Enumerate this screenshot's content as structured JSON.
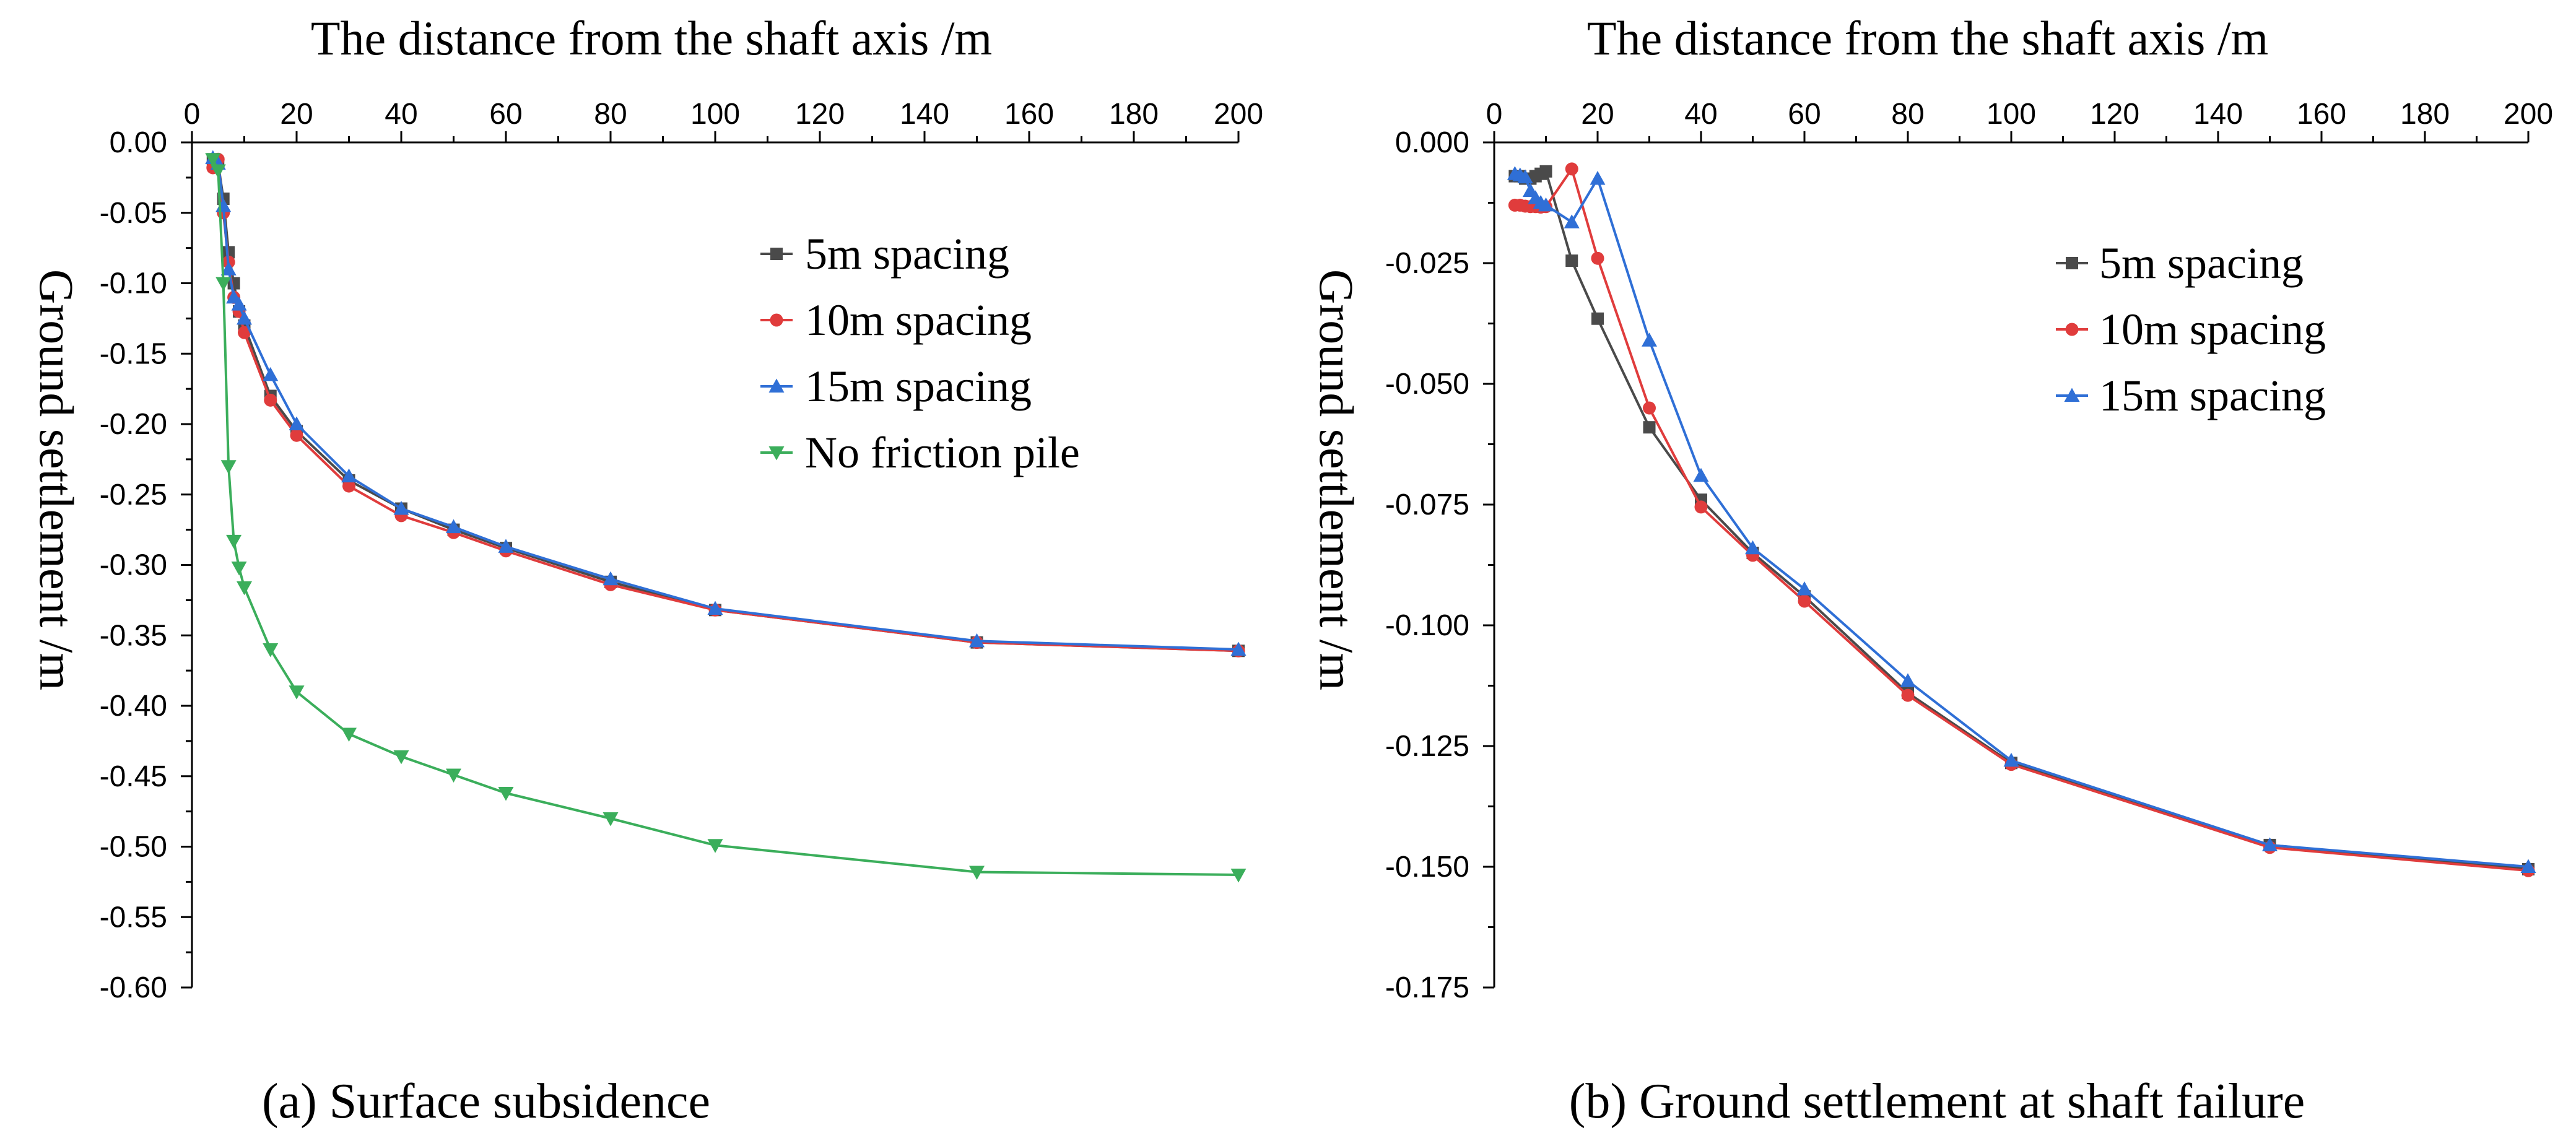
{
  "chart_data": [
    {
      "type": "line",
      "caption": "(a) Surface subsidence",
      "xlabel": "The distance from the shaft axis /m",
      "ylabel": "Ground settlement /m",
      "x_axis_position": "top",
      "xlim": [
        0,
        200
      ],
      "ylim": [
        -0.6,
        0
      ],
      "x_ticks": [
        "0",
        "20",
        "40",
        "60",
        "80",
        "100",
        "120",
        "140",
        "160",
        "180",
        "200"
      ],
      "y_ticks": [
        "0.00",
        "-0.05",
        "-0.10",
        "-0.15",
        "-0.20",
        "-0.25",
        "-0.30",
        "-0.35",
        "-0.40",
        "-0.45",
        "-0.50",
        "-0.55",
        "-0.60"
      ],
      "legend_position": "top-right",
      "series": [
        {
          "name": "5m spacing",
          "color": "#4a4a4a",
          "marker": "square",
          "x": [
            4,
            5,
            6,
            7,
            8,
            9,
            10,
            15,
            20,
            30,
            40,
            50,
            60,
            80,
            100,
            150,
            200
          ],
          "y": [
            -0.012,
            -0.015,
            -0.04,
            -0.078,
            -0.1,
            -0.12,
            -0.13,
            -0.18,
            -0.205,
            -0.24,
            -0.26,
            -0.275,
            -0.288,
            -0.312,
            -0.332,
            -0.355,
            -0.361
          ]
        },
        {
          "name": "10m spacing",
          "color": "#e03c3c",
          "marker": "circle",
          "x": [
            4,
            5,
            6,
            7,
            8,
            9,
            10,
            15,
            20,
            30,
            40,
            50,
            60,
            80,
            100,
            150,
            200
          ],
          "y": [
            -0.018,
            -0.012,
            -0.05,
            -0.085,
            -0.11,
            -0.12,
            -0.135,
            -0.183,
            -0.208,
            -0.244,
            -0.265,
            -0.277,
            -0.29,
            -0.314,
            -0.332,
            -0.355,
            -0.361
          ]
        },
        {
          "name": "15m spacing",
          "color": "#2f6fd6",
          "marker": "triangle",
          "x": [
            4,
            5,
            6,
            7,
            8,
            9,
            10,
            15,
            20,
            30,
            40,
            50,
            60,
            80,
            100,
            150,
            200
          ],
          "y": [
            -0.011,
            -0.015,
            -0.045,
            -0.09,
            -0.11,
            -0.115,
            -0.125,
            -0.165,
            -0.2,
            -0.237,
            -0.26,
            -0.273,
            -0.287,
            -0.31,
            -0.331,
            -0.354,
            -0.36
          ]
        },
        {
          "name": "No friction pile",
          "color": "#3bae5b",
          "marker": "triangle-down",
          "x": [
            4,
            5,
            6,
            7,
            8,
            9,
            10,
            15,
            20,
            30,
            40,
            50,
            60,
            80,
            100,
            150,
            200
          ],
          "y": [
            -0.012,
            -0.02,
            -0.1,
            -0.23,
            -0.283,
            -0.302,
            -0.316,
            -0.36,
            -0.39,
            -0.42,
            -0.436,
            -0.449,
            -0.462,
            -0.48,
            -0.499,
            -0.518,
            -0.52
          ]
        }
      ]
    },
    {
      "type": "line",
      "caption": "(b) Ground settlement at shaft failure",
      "xlabel": "The distance from the shaft axis /m",
      "ylabel": "Ground settlement /m",
      "x_axis_position": "top",
      "xlim": [
        0,
        200
      ],
      "ylim": [
        -0.175,
        0
      ],
      "x_ticks": [
        "0",
        "20",
        "40",
        "60",
        "80",
        "100",
        "120",
        "140",
        "160",
        "180",
        "200"
      ],
      "y_ticks": [
        "0.000",
        "-0.025",
        "-0.050",
        "-0.075",
        "-0.100",
        "-0.125",
        "-0.150",
        "-0.175"
      ],
      "legend_position": "top-right",
      "series": [
        {
          "name": "5m spacing",
          "color": "#4a4a4a",
          "marker": "square",
          "x": [
            4,
            5,
            6,
            7,
            8,
            9,
            10,
            15,
            20,
            30,
            40,
            50,
            60,
            80,
            100,
            150,
            200
          ],
          "y": [
            -0.007,
            -0.007,
            -0.0075,
            -0.0075,
            -0.007,
            -0.0065,
            -0.006,
            -0.0245,
            -0.0365,
            -0.059,
            -0.074,
            -0.085,
            -0.094,
            -0.114,
            -0.1285,
            -0.1455,
            -0.1505
          ]
        },
        {
          "name": "10m spacing",
          "color": "#e03c3c",
          "marker": "circle",
          "x": [
            4,
            5,
            6,
            7,
            8,
            9,
            10,
            15,
            20,
            30,
            40,
            50,
            60,
            80,
            100,
            150,
            200
          ],
          "y": [
            -0.013,
            -0.013,
            -0.0132,
            -0.0133,
            -0.0133,
            -0.0134,
            -0.0133,
            -0.0055,
            -0.024,
            -0.055,
            -0.0755,
            -0.0855,
            -0.095,
            -0.1145,
            -0.1288,
            -0.146,
            -0.1508
          ]
        },
        {
          "name": "15m spacing",
          "color": "#2f6fd6",
          "marker": "triangle",
          "x": [
            4,
            5,
            6,
            7,
            8,
            9,
            10,
            15,
            20,
            30,
            40,
            50,
            60,
            80,
            100,
            150,
            200
          ],
          "y": [
            -0.0065,
            -0.0068,
            -0.0072,
            -0.01,
            -0.0115,
            -0.0125,
            -0.013,
            -0.0165,
            -0.0075,
            -0.041,
            -0.069,
            -0.084,
            -0.0925,
            -0.1115,
            -0.128,
            -0.1455,
            -0.15
          ]
        }
      ]
    }
  ]
}
